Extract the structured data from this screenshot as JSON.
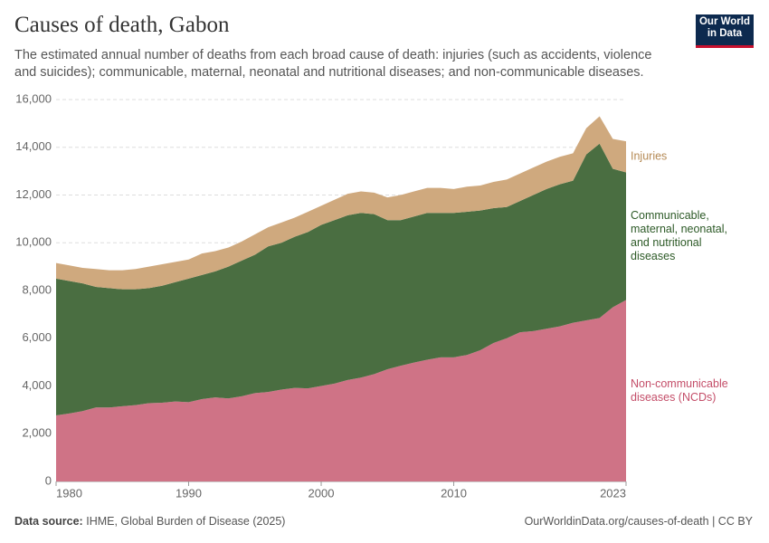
{
  "chart_data": {
    "type": "stacked-area",
    "title": "Causes of death, Gabon",
    "subtitle": "The estimated annual number of deaths from each broad cause of death: injuries (such as accidents, violence and suicides); communicable, maternal, neonatal and nutritional diseases; and non-communicable diseases.",
    "logo": "Our World in Data",
    "source_label": "Data source:",
    "source": "IHME, Global Burden of Disease (2025)",
    "url": "OurWorldinData.org/causes-of-death | CC BY",
    "x": [
      1980,
      1981,
      1982,
      1983,
      1984,
      1985,
      1986,
      1987,
      1988,
      1989,
      1990,
      1991,
      1992,
      1993,
      1994,
      1995,
      1996,
      1997,
      1998,
      1999,
      2000,
      2001,
      2002,
      2003,
      2004,
      2005,
      2006,
      2007,
      2008,
      2009,
      2010,
      2011,
      2012,
      2013,
      2014,
      2015,
      2016,
      2017,
      2018,
      2019,
      2020,
      2021,
      2022,
      2023
    ],
    "xlim": [
      1980,
      2023
    ],
    "xticks": [
      1980,
      1990,
      2000,
      2010,
      2023
    ],
    "ylim": [
      0,
      16000
    ],
    "yticks": [
      0,
      {
        "value": 2000,
        "label": "2,000"
      },
      {
        "value": 4000,
        "label": "4,000"
      },
      {
        "value": 6000,
        "label": "6,000"
      },
      {
        "value": 8000,
        "label": "8,000"
      },
      {
        "value": 10000,
        "label": "10,000"
      },
      {
        "value": 12000,
        "label": "12,000"
      },
      {
        "value": 14000,
        "label": "14,000"
      },
      {
        "value": 16000,
        "label": "16,000"
      }
    ],
    "grid": true,
    "series": [
      {
        "name": "Non-communicable diseases (NCDs)",
        "color": "#cf7386",
        "values": [
          2770,
          2850,
          2950,
          3100,
          3100,
          3150,
          3200,
          3280,
          3300,
          3350,
          3320,
          3450,
          3520,
          3480,
          3570,
          3700,
          3750,
          3850,
          3920,
          3900,
          4000,
          4100,
          4250,
          4350,
          4500,
          4700,
          4850,
          4980,
          5100,
          5200,
          5200,
          5300,
          5500,
          5800,
          6000,
          6250,
          6300,
          6400,
          6500,
          6650,
          6750,
          6850,
          7300,
          7600
        ]
      },
      {
        "name": "Communicable, maternal, neonatal, and nutritional diseases",
        "color": "#4a6e41",
        "values": [
          5730,
          5550,
          5350,
          5050,
          5000,
          4900,
          4850,
          4820,
          4900,
          5000,
          5180,
          5200,
          5280,
          5520,
          5680,
          5800,
          6100,
          6150,
          6330,
          6550,
          6750,
          6850,
          6900,
          6900,
          6700,
          6250,
          6100,
          6120,
          6150,
          6050,
          6050,
          6000,
          5850,
          5650,
          5500,
          5500,
          5700,
          5850,
          5950,
          5950,
          6950,
          7300,
          5800,
          5350
        ]
      },
      {
        "name": "Injuries",
        "color": "#cfa97e",
        "values": [
          650,
          650,
          650,
          750,
          750,
          800,
          850,
          900,
          900,
          850,
          800,
          900,
          850,
          800,
          800,
          850,
          800,
          850,
          800,
          850,
          800,
          850,
          900,
          900,
          900,
          950,
          1050,
          1050,
          1050,
          1050,
          1000,
          1050,
          1050,
          1100,
          1150,
          1150,
          1150,
          1150,
          1150,
          1150,
          1100,
          1150,
          1250,
          1300
        ]
      }
    ]
  }
}
